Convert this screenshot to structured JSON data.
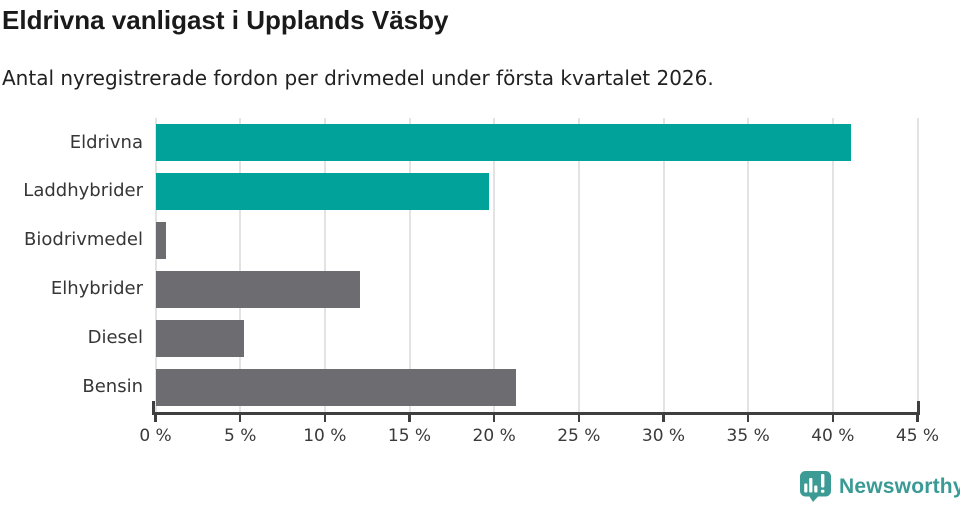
{
  "chart_data": {
    "type": "bar",
    "orientation": "horizontal",
    "title": "Eldrivna vanligast i Upplands Väsby",
    "subtitle": "Antal nyregistrerade fordon per drivmedel under första kvartalet 2026.",
    "categories": [
      "Eldrivna",
      "Laddhybrider",
      "Biodrivmedel",
      "Elhybrider",
      "Diesel",
      "Bensin"
    ],
    "values": [
      41.1,
      19.7,
      0.6,
      12.1,
      5.2,
      21.3
    ],
    "unit": "%",
    "series_colors": [
      "#00a29a",
      "#00a29a",
      "#6c6c71",
      "#6c6c71",
      "#6c6c71",
      "#6c6c71"
    ],
    "highlight_color": "#00a29a",
    "default_color": "#6c6c71",
    "xlim": [
      0,
      45
    ],
    "x_ticks": [
      0,
      5,
      10,
      15,
      20,
      25,
      30,
      35,
      40,
      45
    ],
    "x_tick_labels": [
      "0 %",
      "5 %",
      "10 %",
      "15 %",
      "20 %",
      "25 %",
      "30 %",
      "35 %",
      "40 %",
      "45 %"
    ],
    "grid": "vertical-only",
    "legend": "none"
  },
  "colors": {
    "background": "#ffffff",
    "title_text": "#1a1a1a",
    "subtitle_text": "#212121",
    "label_text": "#363636",
    "tick_text": "#3a3a3a",
    "axis": "#3f3f3f",
    "gridline": "#e3e3e3",
    "logo_teal": "#3d9b96",
    "logo_text_teal": "#3a9a95"
  },
  "footer": {
    "brand": "Newsworthy",
    "logo_icon": "bar-chart-speech-bubble"
  }
}
